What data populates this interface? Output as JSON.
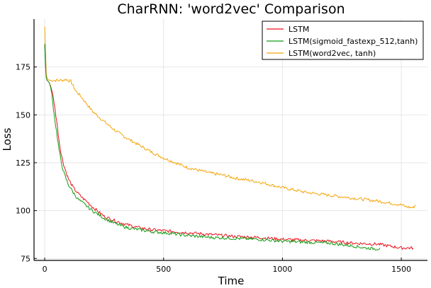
{
  "chart_data": {
    "type": "line",
    "title": "CharRNN: 'word2vec' Comparison",
    "xlabel": "Time",
    "ylabel": "Loss",
    "xlim": [
      -45,
      1610
    ],
    "ylim": [
      74,
      200
    ],
    "xticks": [
      0,
      500,
      1000,
      1500
    ],
    "yticks": [
      75,
      100,
      125,
      150,
      175
    ],
    "xtick_labels": [
      "0",
      "500",
      "1000",
      "1500"
    ],
    "ytick_labels": [
      "75",
      "100",
      "125",
      "150",
      "175"
    ],
    "grid": true,
    "legend_position": "top-right",
    "series": [
      {
        "name": "LSTM",
        "color": "#e8131d",
        "x": [
          0,
          3,
          6,
          10,
          15,
          20,
          25,
          30,
          40,
          50,
          60,
          70,
          80,
          90,
          100,
          120,
          140,
          160,
          180,
          200,
          220,
          250,
          300,
          350,
          400,
          450,
          500,
          600,
          700,
          800,
          900,
          1000,
          1100,
          1200,
          1300,
          1400,
          1450,
          1500,
          1550
        ],
        "y": [
          187,
          178,
          170,
          168,
          167.5,
          166.5,
          165,
          163,
          156,
          147,
          137,
          129,
          124,
          120,
          116.5,
          112,
          109,
          106.5,
          104.5,
          102,
          100,
          97,
          94.5,
          92.5,
          91,
          90,
          89.5,
          88.5,
          87.5,
          86.5,
          86,
          85,
          84.5,
          84,
          83,
          82.5,
          81.5,
          80.5,
          80.5
        ]
      },
      {
        "name": "LSTM(sigmoid_fastexp_512,tanh)",
        "color": "#119a11",
        "x": [
          0,
          3,
          6,
          10,
          15,
          20,
          25,
          30,
          40,
          50,
          60,
          70,
          80,
          90,
          100,
          120,
          140,
          160,
          180,
          200,
          250,
          300,
          350,
          400,
          450,
          500,
          600,
          700,
          800,
          900,
          1000,
          1100,
          1200,
          1300,
          1350,
          1400,
          1410
        ],
        "y": [
          187,
          176,
          170,
          168,
          167.5,
          166.5,
          164,
          160,
          150,
          141,
          132,
          125,
          120,
          116.5,
          113.5,
          109.5,
          106,
          104,
          102,
          100,
          96,
          93,
          91,
          90,
          89,
          88.5,
          87,
          86,
          85.5,
          85,
          84,
          83.5,
          83,
          81.5,
          80.5,
          80,
          80.5
        ]
      },
      {
        "name": "LSTM(word2vec, tanh)",
        "color": "#f5a50a",
        "x": [
          0,
          3,
          6,
          10,
          15,
          20,
          30,
          50,
          70,
          90,
          100,
          110,
          120,
          130,
          150,
          175,
          200,
          250,
          300,
          350,
          400,
          450,
          500,
          550,
          600,
          650,
          700,
          750,
          800,
          900,
          1000,
          1100,
          1200,
          1300,
          1400,
          1450,
          1500,
          1520,
          1550,
          1560
        ],
        "y": [
          196,
          185,
          172,
          169,
          168.5,
          168,
          168,
          168,
          168,
          168.5,
          168,
          167.5,
          165,
          162.5,
          160,
          156,
          152,
          146.5,
          141.5,
          137.5,
          134,
          130.5,
          127.5,
          125,
          122.5,
          121,
          119.5,
          118.5,
          117,
          115,
          112,
          109.5,
          108,
          106.5,
          105,
          104,
          103,
          102,
          101.5,
          103
        ]
      }
    ]
  }
}
